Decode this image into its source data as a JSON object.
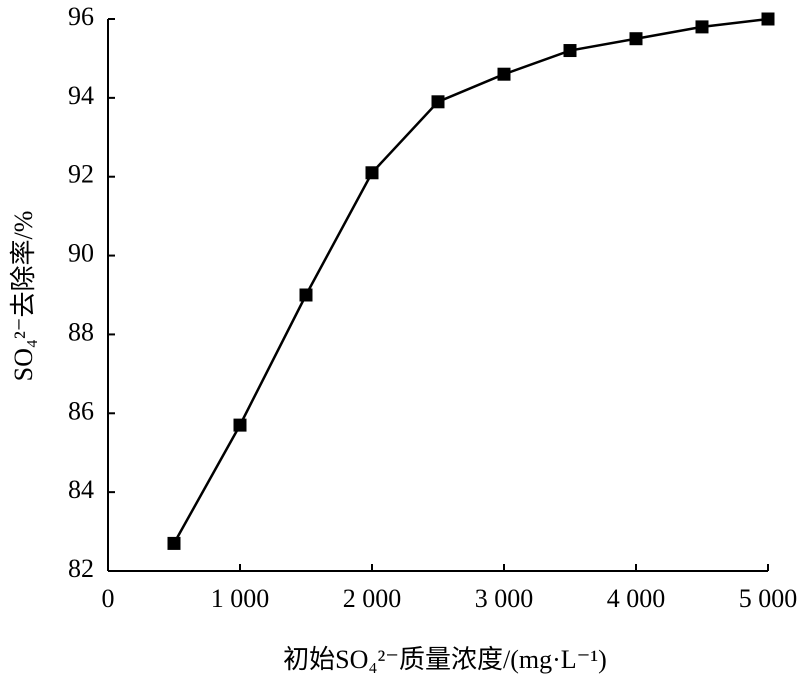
{
  "chart_data": {
    "type": "line",
    "x_label": "初始SO₄²⁻质量浓度/(mg·L⁻¹)",
    "y_label": "SO₄²⁻去除率/%",
    "x": [
      500,
      1000,
      1500,
      2000,
      2500,
      3000,
      3500,
      4000,
      4500,
      5000
    ],
    "series": [
      {
        "color": "#000000",
        "values": [
          82.7,
          85.7,
          89.0,
          92.1,
          93.9,
          94.6,
          95.2,
          95.5,
          95.8,
          96.0
        ]
      }
    ],
    "xlim": [
      0,
      5000
    ],
    "xticks": [
      0,
      {
        "value": 1000,
        "label": "1 000"
      },
      {
        "value": 2000,
        "label": "2 000"
      },
      {
        "value": 3000,
        "label": "3 000"
      },
      {
        "value": 4000,
        "label": "4 000"
      },
      {
        "value": 5000,
        "label": "5 000"
      }
    ],
    "ylim": [
      82,
      96
    ],
    "yticks": [
      82,
      84,
      86,
      88,
      90,
      92,
      94,
      96
    ],
    "grid": false
  }
}
